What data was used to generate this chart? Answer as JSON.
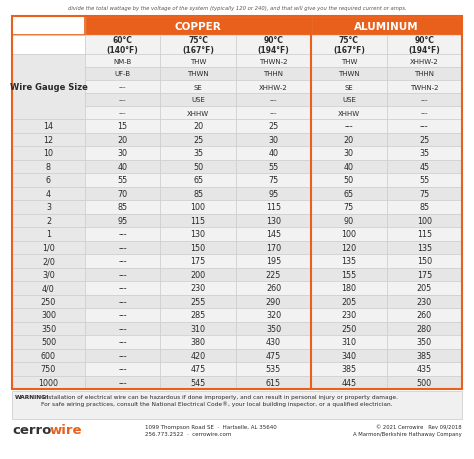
{
  "top_text": "divide the total wattage by the voltage of the system (typically 120 or 240), and that will give you the required current or amps.",
  "header_copper": "COPPER",
  "header_aluminum": "ALUMINUM",
  "col_headers": [
    "60°C\n(140°F)",
    "75°C\n(167°F)",
    "90°C\n(194°F)",
    "75°C\n(167°F)",
    "90°C\n(194°F)"
  ],
  "wire_types_rows": [
    [
      "NM-B",
      "THW",
      "THWN-2",
      "THW",
      "XHHW-2"
    ],
    [
      "UF-B",
      "THWN",
      "THHN",
      "THWN",
      "THHN"
    ],
    [
      "---",
      "SE",
      "XHHW-2",
      "SE",
      "TWHN-2"
    ],
    [
      "---",
      "USE",
      "---",
      "USE",
      "---"
    ],
    [
      "---",
      "XHHW",
      "---",
      "XHHW",
      "---"
    ]
  ],
  "row_label": "Wire Gauge Size",
  "data_rows": [
    [
      "14",
      "15",
      "20",
      "25",
      "---",
      "---"
    ],
    [
      "12",
      "20",
      "25",
      "30",
      "20",
      "25"
    ],
    [
      "10",
      "30",
      "35",
      "40",
      "30",
      "35"
    ],
    [
      "8",
      "40",
      "50",
      "55",
      "40",
      "45"
    ],
    [
      "6",
      "55",
      "65",
      "75",
      "50",
      "55"
    ],
    [
      "4",
      "70",
      "85",
      "95",
      "65",
      "75"
    ],
    [
      "3",
      "85",
      "100",
      "115",
      "75",
      "85"
    ],
    [
      "2",
      "95",
      "115",
      "130",
      "90",
      "100"
    ],
    [
      "1",
      "---",
      "130",
      "145",
      "100",
      "115"
    ],
    [
      "1/0",
      "---",
      "150",
      "170",
      "120",
      "135"
    ],
    [
      "2/0",
      "---",
      "175",
      "195",
      "135",
      "150"
    ],
    [
      "3/0",
      "---",
      "200",
      "225",
      "155",
      "175"
    ],
    [
      "4/0",
      "---",
      "230",
      "260",
      "180",
      "205"
    ],
    [
      "250",
      "---",
      "255",
      "290",
      "205",
      "230"
    ],
    [
      "300",
      "---",
      "285",
      "320",
      "230",
      "260"
    ],
    [
      "350",
      "---",
      "310",
      "350",
      "250",
      "280"
    ],
    [
      "500",
      "---",
      "380",
      "430",
      "310",
      "350"
    ],
    [
      "600",
      "---",
      "420",
      "475",
      "340",
      "385"
    ],
    [
      "750",
      "---",
      "475",
      "535",
      "385",
      "435"
    ],
    [
      "1000",
      "---",
      "545",
      "615",
      "445",
      "500"
    ]
  ],
  "warning_bold": "WARNING!",
  "warning_text": " Installation of electrical wire can be hazardous if done improperly, and can result in personal injury or property damage.\nFor safe wiring practices, consult the National Electrical Code®, your local building inspector, or a qualified electrician.",
  "company_address": "1099 Thompson Road SE  ·  Hartselle, AL 35640\n256.773.2522  ·  cerrowire.com",
  "copyright_text": "© 2021 Cerrowire   Rev 09/2018\nA Marmon/Berkshire Hathaway Company",
  "orange": "#E8601C",
  "white": "#FFFFFF",
  "light_row": "#F2F2F2",
  "dark_row": "#E6E6E6",
  "left_col_bg": "#E8E8E8",
  "border": "#C8C8C8",
  "text_dark": "#2A2A2A",
  "header_text": "#FFFFFF",
  "sub_header_bg": "#F2F2F2",
  "warning_bg": "#F0F0F0"
}
